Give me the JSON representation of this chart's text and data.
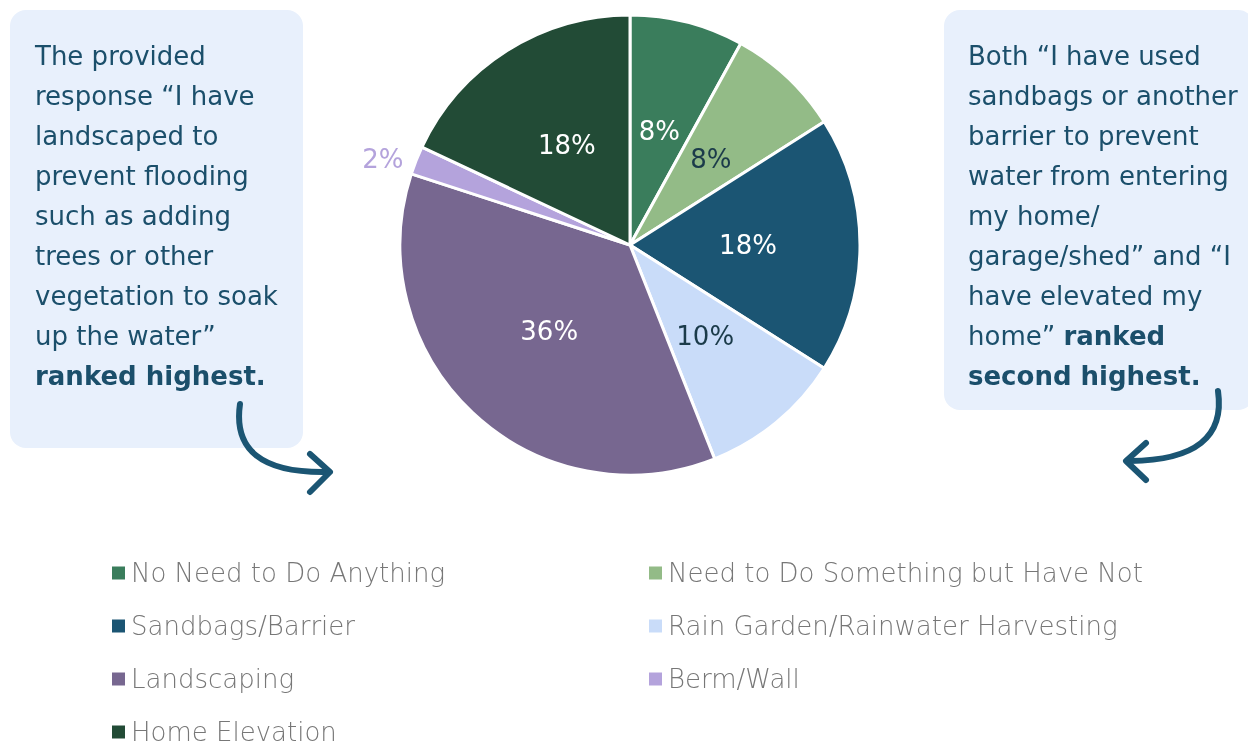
{
  "chart_data": {
    "type": "pie",
    "categories": [
      "No Need to Do Anything",
      "Need to Do Something but Have Not",
      "Sandbags/Barrier",
      "Rain Garden/Rainwater Harvesting",
      "Landscaping",
      "Berm/Wall",
      "Home Elevation"
    ],
    "values": [
      8,
      8,
      18,
      10,
      36,
      2,
      18
    ],
    "colors": [
      "#3a7d5c",
      "#93bb87",
      "#1b5573",
      "#c9dcf9",
      "#776790",
      "#b4a3dc",
      "#224b36"
    ],
    "value_labels": [
      "8%",
      "8%",
      "18%",
      "10%",
      "36%",
      "2%",
      "18%"
    ],
    "legend": "bottom",
    "annotations": [
      "The provided response “I have landscaped to prevent flooding such as adding trees or other vegetation to soak up the water”",
      "ranked highest.",
      "Both “I have used sandbags or another barrier to prevent water from entering my home/ garage/shed” and “I have elevated my home”",
      "ranked second highest."
    ]
  }
}
